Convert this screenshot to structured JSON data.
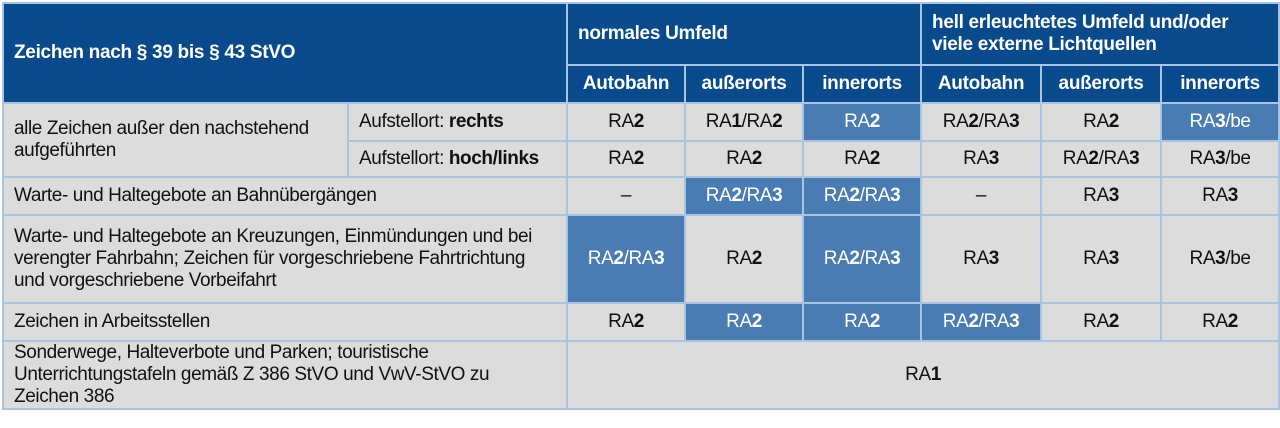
{
  "header": {
    "title": "Zeichen nach § 39 bis § 43 StVO",
    "group_normal": "normales Umfeld",
    "group_bright": "hell erleuchtetes Umfeld und/oder viele externe Lichtquellen",
    "sub": [
      "Autobahn",
      "außerorts",
      "innerorts",
      "Autobahn",
      "außerorts",
      "innerorts"
    ]
  },
  "colors": {
    "header": "#094a8d",
    "highlight": "#4a7cb4",
    "cell": "#dcdcdc",
    "border": "#a9c4e0"
  },
  "rows": [
    {
      "label": "alle Zeichen außer den nachstehend aufgeführten",
      "sub_prefix": "Aufstellort: ",
      "sub_bold": "rechts",
      "cells": [
        "RA2",
        "RA1/RA2",
        "RA2",
        "RA2/RA3",
        "RA2",
        "RA3/be"
      ],
      "highlight": [
        2,
        5
      ]
    },
    {
      "sub_prefix": "Aufstellort: ",
      "sub_bold": "hoch/links",
      "cells": [
        "RA2",
        "RA2",
        "RA2",
        "RA3",
        "RA2/RA3",
        "RA3/be"
      ],
      "highlight": []
    },
    {
      "label": "Warte- und Haltegebote an Bahnübergängen",
      "cells": [
        "–",
        "RA2/RA3",
        "RA2/RA3",
        "–",
        "RA3",
        "RA3"
      ],
      "highlight": [
        1,
        2
      ]
    },
    {
      "label": "Warte- und Haltegebote an Kreuzungen, Einmündungen und bei verengter Fahrbahn; Zeichen für vorgeschriebene Fahrtrichtung und vorgeschriebene Vorbeifahrt",
      "cells": [
        "RA2/RA3",
        "RA2",
        "RA2/RA3",
        "RA3",
        "RA3",
        "RA3/be"
      ],
      "highlight": [
        0,
        2
      ]
    },
    {
      "label": "Zeichen in Arbeitsstellen",
      "cells": [
        "RA2",
        "RA2",
        "RA2",
        "RA2/RA3",
        "RA2",
        "RA2"
      ],
      "highlight": [
        1,
        2,
        3
      ]
    },
    {
      "label": "Sonderwege, Halteverbote und Parken; touristische Unterrichtungstafeln gemäß Z 386 StVO und VwV-StVO zu Zeichen 386",
      "merged": "RA1"
    }
  ]
}
